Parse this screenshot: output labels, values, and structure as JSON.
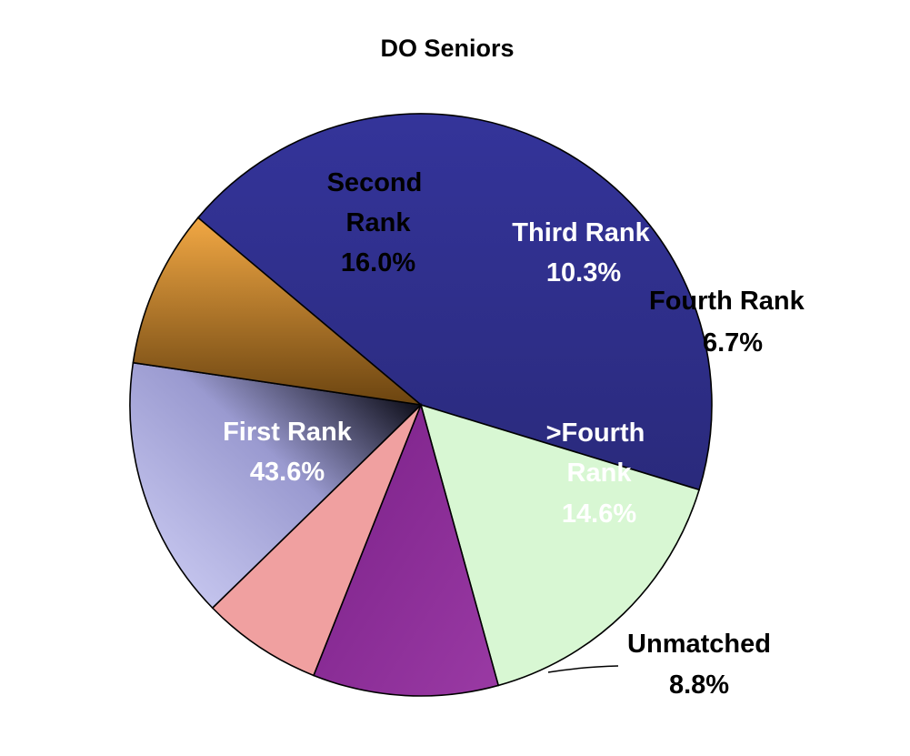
{
  "chart_data": {
    "type": "pie",
    "title": "DO Seniors",
    "slices": [
      {
        "key": "first",
        "label": "First Rank",
        "value": 43.6,
        "value_label": "43.6%",
        "color": "#2e2e86"
      },
      {
        "key": "second",
        "label": "Second Rank",
        "value": 16.0,
        "value_label": "16.0%",
        "color": "#d8f7d3"
      },
      {
        "key": "third",
        "label": "Third Rank",
        "value": 10.3,
        "value_label": "10.3%",
        "color": "#8a2f94"
      },
      {
        "key": "fourth",
        "label": "Fourth Rank",
        "value": 6.7,
        "value_label": "6.7%",
        "color": "#f0a0a0"
      },
      {
        "key": "gt-fourth",
        "label": ">Fourth Rank",
        "value": 14.6,
        "value_label": "14.6%",
        "color": "#b8b8e0"
      },
      {
        "key": "unmatched",
        "label": "Unmatched",
        "value": 8.8,
        "value_label": "8.8%",
        "color": "#c98a35"
      }
    ],
    "legend": "none",
    "label_placement": "on-slice"
  }
}
